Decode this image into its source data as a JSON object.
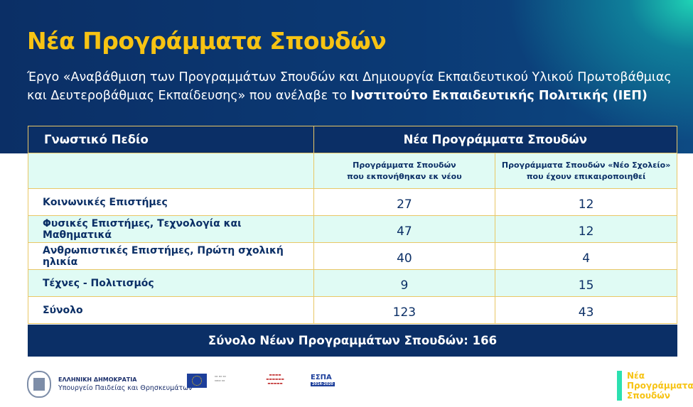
{
  "header": {
    "title": "Νέα Προγράμματα Σπουδών",
    "subtitle_plain": "Έργο «Αναβάθμιση των Προγραμμάτων Σπουδών και Δημιουργία Εκπαιδευτικού Υλικού Πρωτοβάθμιας και Δευτεροβάθμιας Εκπαίδευσης» που ανέλαβε το ",
    "subtitle_bold": "Ινστιτούτο Εκπαιδευτικής Πολιτικής (ΙΕΠ)"
  },
  "table": {
    "col_field": "Γνωστικό Πεδίο",
    "col_group": "Νέα Προγράμματα Σπουδών",
    "sub1_line1": "Προγράμματα Σπουδών",
    "sub1_line2": "που εκπονήθηκαν εκ νέου",
    "sub2_line1": "Προγράμματα Σπουδών «Νέο Σχολείο»",
    "sub2_line2": "που έχουν επικαιροποιηθεί",
    "rows": [
      {
        "label": "Κοινωνικές Επιστήμες",
        "new": "27",
        "updated": "12"
      },
      {
        "label": "Φυσικές Επιστήμες, Τεχνολογία και Μαθηματικά",
        "new": "47",
        "updated": "12"
      },
      {
        "label": "Ανθρωπιστικές Επιστήμες, Πρώτη σχολική ηλικία",
        "new": "40",
        "updated": "4"
      },
      {
        "label": "Τέχνες - Πολιτισμός",
        "new": "9",
        "updated": "15"
      },
      {
        "label": "Σύνολο",
        "new": "123",
        "updated": "43"
      }
    ],
    "total": "Σύνολο Νέων Προγραμμάτων Σπουδών: 166"
  },
  "footer": {
    "republic": "ΕΛΛΗΝΙΚΗ ΔΗΜΟΚΡΑΤΙΑ",
    "ministry": "Υπουργείο Παιδείας και Θρησκευμάτων",
    "espa": "ΕΣΠΑ",
    "espa_years": "2014-2020",
    "brand_line1": "Νέα",
    "brand_line2": "Προγράμματα",
    "brand_line3": "Σπουδών"
  },
  "colors": {
    "navy": "#0b2f66",
    "gold": "#f7c313",
    "mint": "#e0fbf4",
    "accent": "#2be0b0"
  }
}
